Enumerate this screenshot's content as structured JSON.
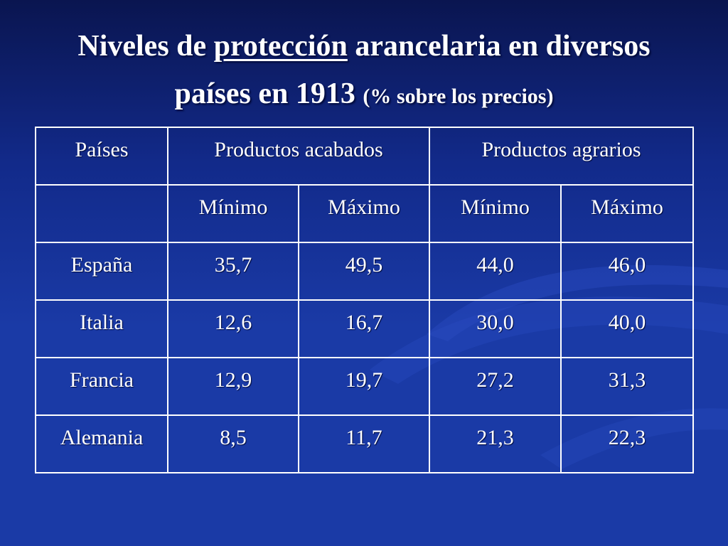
{
  "title": {
    "part1": "Niveles de ",
    "part2": "protección",
    "part3": " arancelaria en diversos",
    "part4": "países en 1913 ",
    "part5": "(% sobre los precios)"
  },
  "table": {
    "header": {
      "countries": "Países",
      "group1": "Productos acabados",
      "group2": "Productos agrarios"
    },
    "subheader": {
      "min1": "Mínimo",
      "max1": "Máximo",
      "min2": "Mínimo",
      "max2": "Máximo"
    },
    "rows": [
      {
        "country": "España",
        "values": [
          "35,7",
          "49,5",
          "44,0",
          "46,0"
        ]
      },
      {
        "country": "Italia",
        "values": [
          "12,6",
          "16,7",
          "30,0",
          "40,0"
        ]
      },
      {
        "country": "Francia",
        "values": [
          "12,9",
          "19,7",
          "27,2",
          "31,3"
        ]
      },
      {
        "country": "Alemania",
        "values": [
          "8,5",
          "11,7",
          "21,3",
          "22,3"
        ]
      }
    ]
  },
  "colors": {
    "background": "#1a3aa6",
    "background_top": "#0a1550",
    "text": "#ffffff",
    "border": "#ffffff"
  }
}
